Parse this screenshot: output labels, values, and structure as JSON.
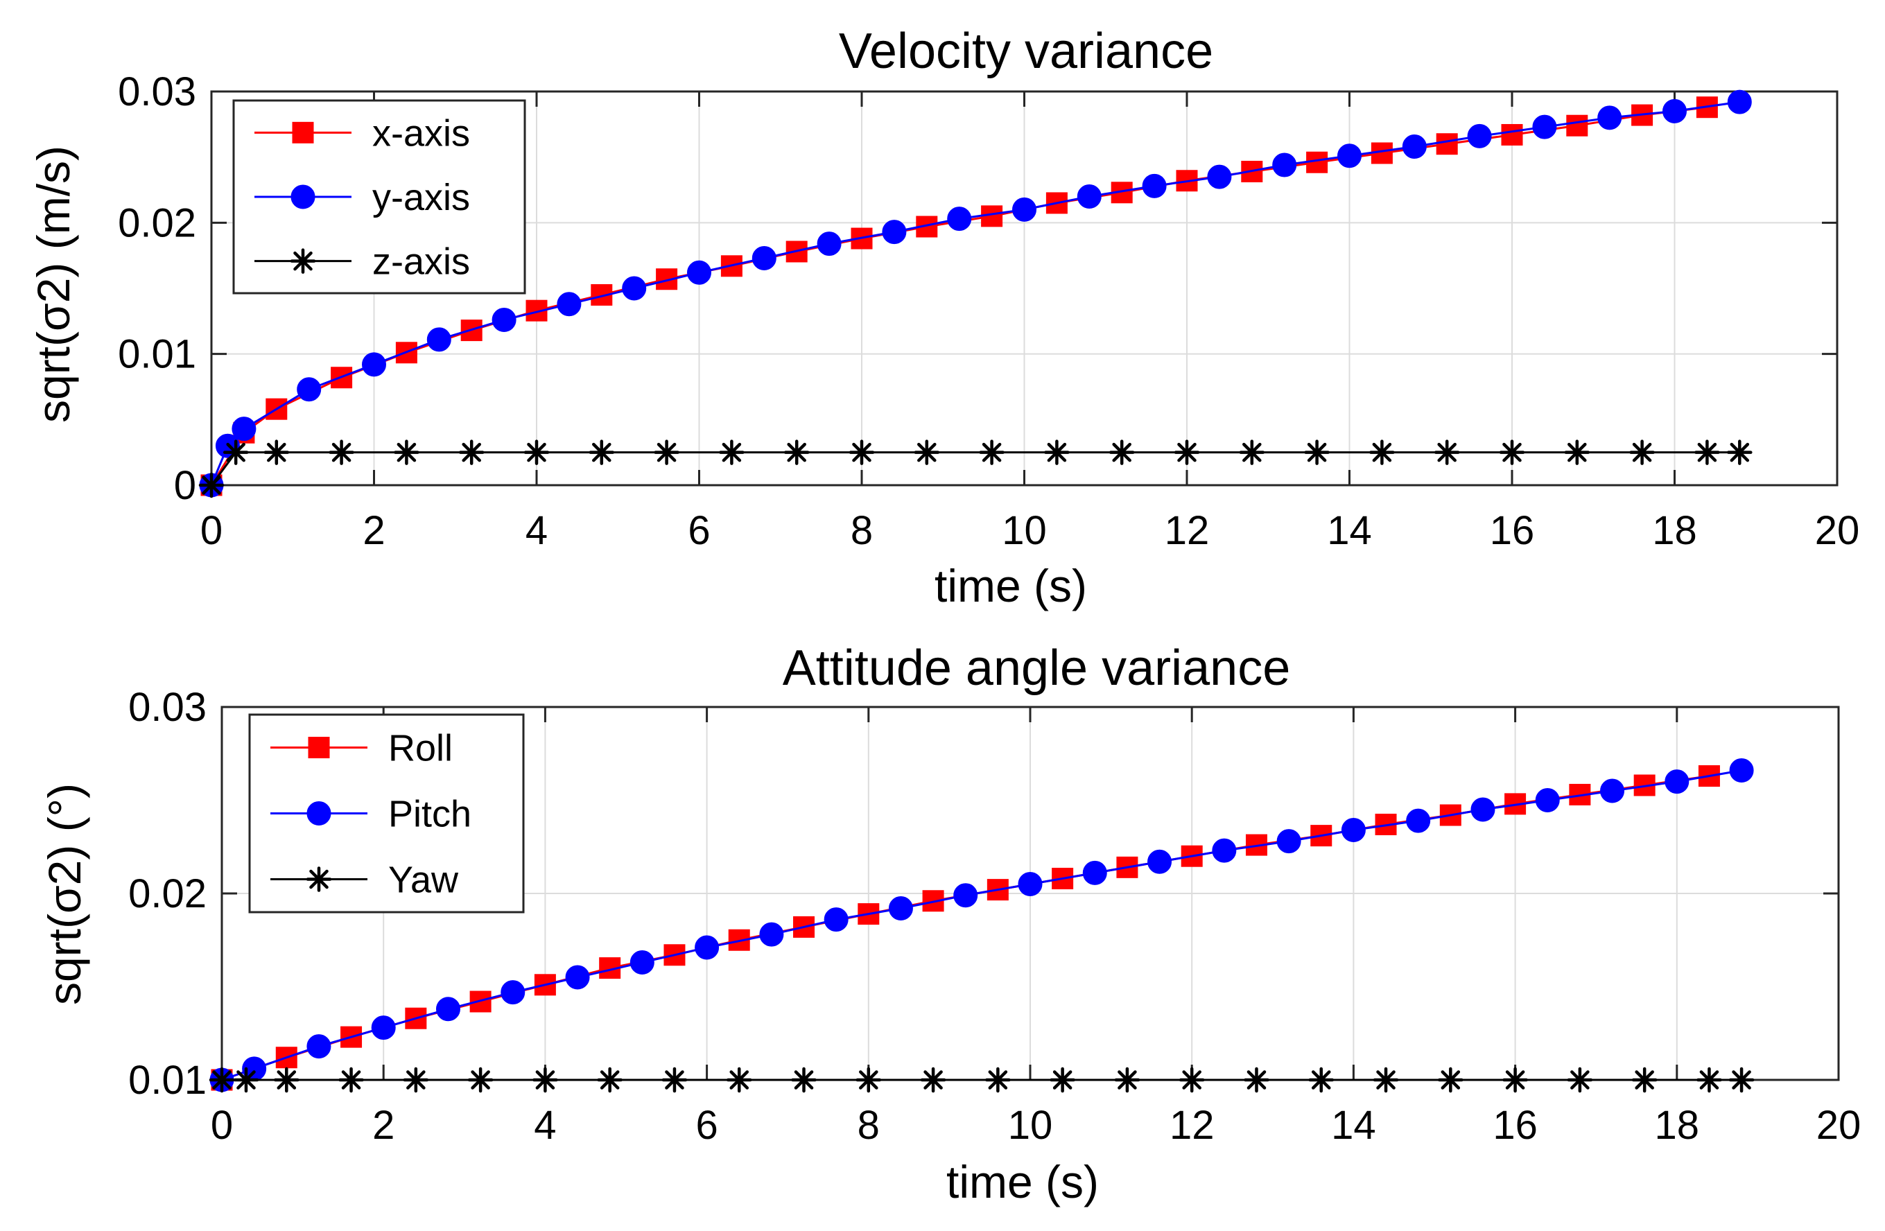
{
  "chart_data": [
    {
      "type": "line",
      "title": "Velocity variance",
      "xlabel": "time (s)",
      "ylabel": "sqrt(σ2) (m/s)",
      "xlim": [
        0,
        20
      ],
      "ylim": [
        0,
        0.03
      ],
      "x_ticks": [
        0,
        2,
        4,
        6,
        8,
        10,
        12,
        14,
        16,
        18,
        20
      ],
      "y_ticks": [
        0,
        0.01,
        0.02,
        0.03
      ],
      "x_tick_labels": [
        "0",
        "2",
        "4",
        "6",
        "8",
        "10",
        "12",
        "14",
        "16",
        "18",
        "20"
      ],
      "y_tick_labels": [
        "0",
        "0.01",
        "0.02",
        "0.03"
      ],
      "grid": true,
      "legend_position": "top-left",
      "series": [
        {
          "name": "x-axis",
          "color": "#ff0000",
          "marker": "square",
          "x": [
            0,
            0.4,
            0.8,
            1.6,
            2.4,
            3.2,
            4.0,
            4.8,
            5.6,
            6.4,
            7.2,
            8.0,
            8.8,
            9.6,
            10.4,
            11.2,
            12.0,
            12.8,
            13.6,
            14.4,
            15.2,
            16.0,
            16.8,
            17.6,
            18.4
          ],
          "values": [
            0,
            0.004,
            0.0058,
            0.0082,
            0.0101,
            0.0118,
            0.0133,
            0.0145,
            0.0157,
            0.0167,
            0.0178,
            0.0188,
            0.0197,
            0.0205,
            0.0215,
            0.0223,
            0.0232,
            0.0239,
            0.0246,
            0.0253,
            0.026,
            0.0267,
            0.0274,
            0.0282,
            0.0288
          ]
        },
        {
          "name": "y-axis",
          "color": "#0000ff",
          "marker": "circle",
          "x": [
            0,
            0.2,
            0.4,
            1.2,
            2.0,
            2.8,
            3.6,
            4.4,
            5.2,
            6.0,
            6.8,
            7.6,
            8.4,
            9.2,
            10.0,
            10.8,
            11.6,
            12.4,
            13.2,
            14.0,
            14.8,
            15.6,
            16.4,
            17.2,
            18.0,
            18.8
          ],
          "values": [
            0,
            0.003,
            0.0043,
            0.0073,
            0.0092,
            0.0111,
            0.0126,
            0.0138,
            0.015,
            0.0162,
            0.0173,
            0.0184,
            0.0193,
            0.0203,
            0.021,
            0.022,
            0.0228,
            0.0235,
            0.0244,
            0.0251,
            0.0258,
            0.0266,
            0.0273,
            0.028,
            0.0285,
            0.0292
          ]
        },
        {
          "name": "z-axis",
          "color": "#000000",
          "marker": "asterisk",
          "x": [
            0,
            0.3,
            0.8,
            1.6,
            2.4,
            3.2,
            4.0,
            4.8,
            5.6,
            6.4,
            7.2,
            8.0,
            8.8,
            9.6,
            10.4,
            11.2,
            12.0,
            12.8,
            13.6,
            14.4,
            15.2,
            16.0,
            16.8,
            17.6,
            18.4,
            18.8
          ],
          "values": [
            0,
            0.0025,
            0.0025,
            0.0025,
            0.0025,
            0.0025,
            0.0025,
            0.0025,
            0.0025,
            0.0025,
            0.0025,
            0.0025,
            0.0025,
            0.0025,
            0.0025,
            0.0025,
            0.0025,
            0.0025,
            0.0025,
            0.0025,
            0.0025,
            0.0025,
            0.0025,
            0.0025,
            0.0025,
            0.0025
          ]
        }
      ]
    },
    {
      "type": "line",
      "title": "Attitude angle variance",
      "xlabel": "time (s)",
      "ylabel": "sqrt(σ2) (°)",
      "xlim": [
        0,
        20
      ],
      "ylim": [
        0.01,
        0.03
      ],
      "x_ticks": [
        0,
        2,
        4,
        6,
        8,
        10,
        12,
        14,
        16,
        18,
        20
      ],
      "y_ticks": [
        0.01,
        0.02,
        0.03
      ],
      "x_tick_labels": [
        "0",
        "2",
        "4",
        "6",
        "8",
        "10",
        "12",
        "14",
        "16",
        "18",
        "20"
      ],
      "y_tick_labels": [
        "0.01",
        "0.02",
        "0.03"
      ],
      "grid": true,
      "legend_position": "top-left",
      "series": [
        {
          "name": "Roll",
          "color": "#ff0000",
          "marker": "square",
          "x": [
            0,
            0.8,
            1.6,
            2.4,
            3.2,
            4.0,
            4.8,
            5.6,
            6.4,
            7.2,
            8.0,
            8.8,
            9.6,
            10.4,
            11.2,
            12.0,
            12.8,
            13.6,
            14.4,
            15.2,
            16.0,
            16.8,
            17.6,
            18.4
          ],
          "values": [
            0.01,
            0.0112,
            0.0123,
            0.0133,
            0.0142,
            0.0151,
            0.016,
            0.0167,
            0.0175,
            0.0182,
            0.0189,
            0.0196,
            0.0202,
            0.0208,
            0.0214,
            0.022,
            0.0226,
            0.0231,
            0.0237,
            0.0242,
            0.0248,
            0.0253,
            0.0258,
            0.0263
          ]
        },
        {
          "name": "Pitch",
          "color": "#0000ff",
          "marker": "circle",
          "x": [
            0,
            0.4,
            1.2,
            2.0,
            2.8,
            3.6,
            4.4,
            5.2,
            6.0,
            6.8,
            7.6,
            8.4,
            9.2,
            10.0,
            10.8,
            11.6,
            12.4,
            13.2,
            14.0,
            14.8,
            15.6,
            16.4,
            17.2,
            18.0,
            18.8
          ],
          "values": [
            0.01,
            0.0106,
            0.0118,
            0.0128,
            0.0138,
            0.0147,
            0.0155,
            0.0163,
            0.0171,
            0.0178,
            0.0186,
            0.0192,
            0.0199,
            0.0205,
            0.0211,
            0.0217,
            0.0223,
            0.0228,
            0.0234,
            0.0239,
            0.0245,
            0.025,
            0.0255,
            0.026,
            0.0266
          ]
        },
        {
          "name": "Yaw",
          "color": "#000000",
          "marker": "asterisk",
          "x": [
            0,
            0.3,
            0.8,
            1.6,
            2.4,
            3.2,
            4.0,
            4.8,
            5.6,
            6.4,
            7.2,
            8.0,
            8.8,
            9.6,
            10.4,
            11.2,
            12.0,
            12.8,
            13.6,
            14.4,
            15.2,
            16.0,
            16.8,
            17.6,
            18.4,
            18.8
          ],
          "values": [
            0.01,
            0.01,
            0.01,
            0.01,
            0.01,
            0.01,
            0.01,
            0.01,
            0.01,
            0.01,
            0.01,
            0.01,
            0.01,
            0.01,
            0.01,
            0.01,
            0.01,
            0.01,
            0.01,
            0.01,
            0.01,
            0.01,
            0.01,
            0.01,
            0.01,
            0.01
          ]
        }
      ]
    }
  ]
}
